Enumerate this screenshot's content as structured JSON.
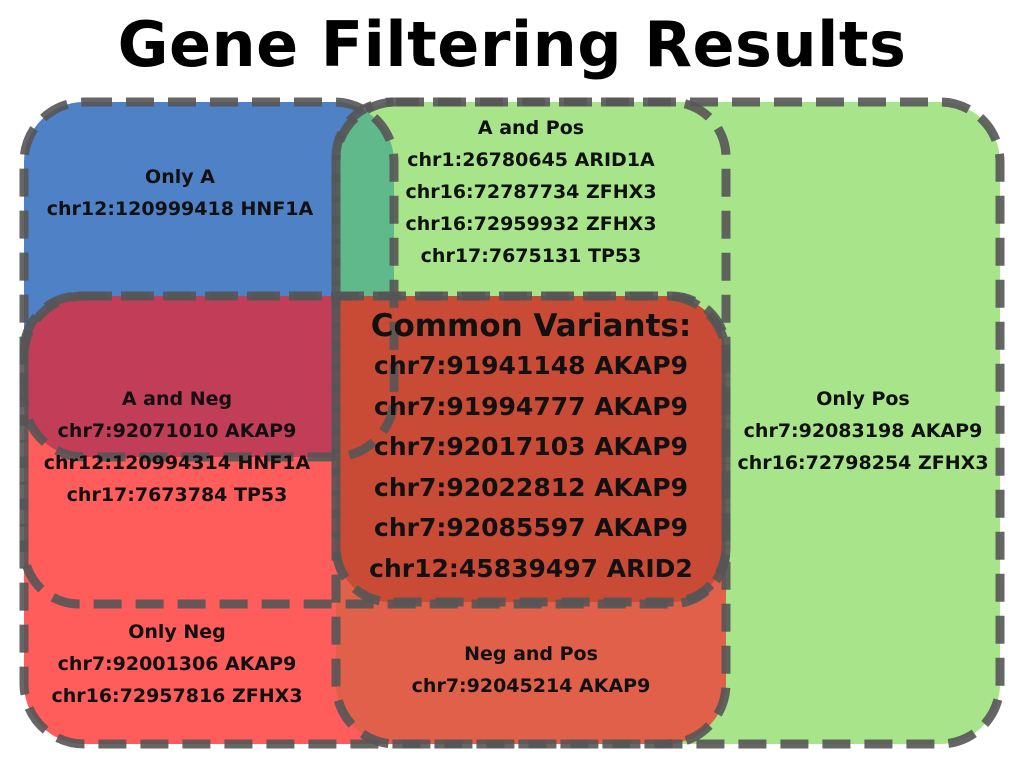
{
  "title": "Gene Filtering Results",
  "colors": {
    "set_a": "#4f81c7",
    "set_pos": "#a8e48a",
    "set_neg": "#ff5c5c",
    "a_and_pos": "#5fb98a",
    "a_and_neg": "#c23d58",
    "neg_and_pos": "#e0604a",
    "common": "#c94a35",
    "border": "#555555"
  },
  "regions": {
    "only_a": {
      "label": "Only A",
      "items": [
        "chr12:120999418 HNF1A"
      ]
    },
    "a_and_pos": {
      "label": "A and Pos",
      "items": [
        "chr1:26780645 ARID1A",
        "chr16:72787734 ZFHX3",
        "chr16:72959932 ZFHX3",
        "chr17:7675131 TP53"
      ]
    },
    "common": {
      "label": "Common Variants:",
      "items": [
        "chr7:91941148 AKAP9",
        "chr7:91994777 AKAP9",
        "chr7:92017103 AKAP9",
        "chr7:92022812 AKAP9",
        "chr7:92085597 AKAP9",
        "chr12:45839497 ARID2"
      ]
    },
    "a_and_neg": {
      "label": "A and Neg",
      "items": [
        "chr7:92071010 AKAP9",
        "chr12:120994314 HNF1A",
        "chr17:7673784 TP53"
      ]
    },
    "only_pos": {
      "label": "Only Pos",
      "items": [
        "chr7:92083198 AKAP9",
        "chr16:72798254 ZFHX3"
      ]
    },
    "only_neg": {
      "label": "Only Neg",
      "items": [
        "chr7:92001306 AKAP9",
        "chr16:72957816 ZFHX3"
      ]
    },
    "neg_and_pos": {
      "label": "Neg and Pos",
      "items": [
        "chr7:92045214 AKAP9"
      ]
    }
  }
}
